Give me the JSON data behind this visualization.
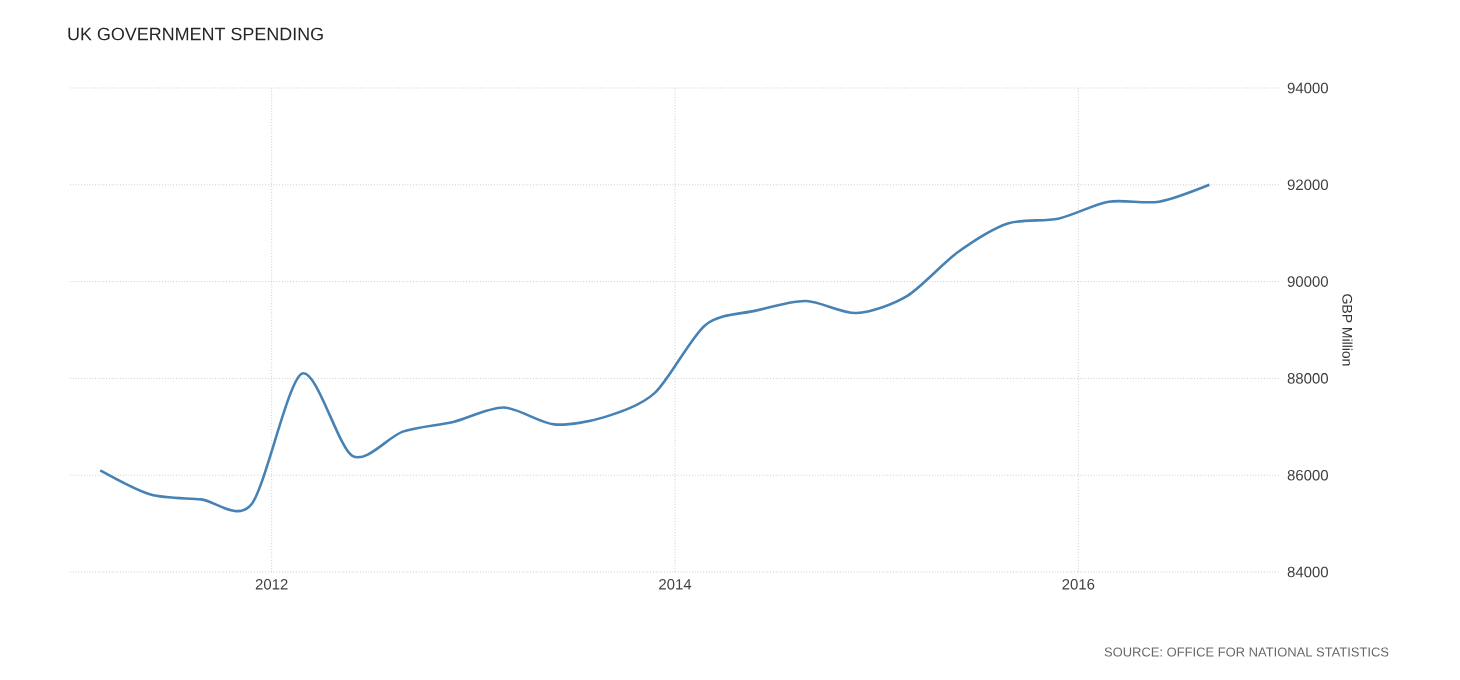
{
  "chart_data": {
    "type": "line",
    "title": "UK GOVERNMENT SPENDING",
    "ylabel": "GBP Million",
    "annotations": [
      "SOURCE: OFFICE FOR NATIONAL STATISTICS"
    ],
    "x": [
      2011.15,
      2011.4,
      2011.65,
      2011.9,
      2012.15,
      2012.4,
      2012.65,
      2012.9,
      2013.15,
      2013.4,
      2013.65,
      2013.9,
      2014.15,
      2014.4,
      2014.65,
      2014.9,
      2015.15,
      2015.4,
      2015.65,
      2015.9,
      2016.15,
      2016.4,
      2016.65
    ],
    "series": [
      {
        "color": "#4682b4",
        "values": [
          86100,
          85600,
          85500,
          85400,
          88100,
          86400,
          86900,
          87100,
          87400,
          87050,
          87200,
          87700,
          89100,
          89400,
          89600,
          89350,
          89700,
          90600,
          91200,
          91300,
          91650,
          91650,
          92000
        ]
      }
    ],
    "xlim": [
      2011.0,
      2017.0
    ],
    "ylim": [
      84000,
      94000
    ],
    "xticks": [
      2012,
      2014,
      2016
    ],
    "yticks": [
      84000,
      86000,
      88000,
      90000,
      92000,
      94000
    ],
    "grid": true
  }
}
